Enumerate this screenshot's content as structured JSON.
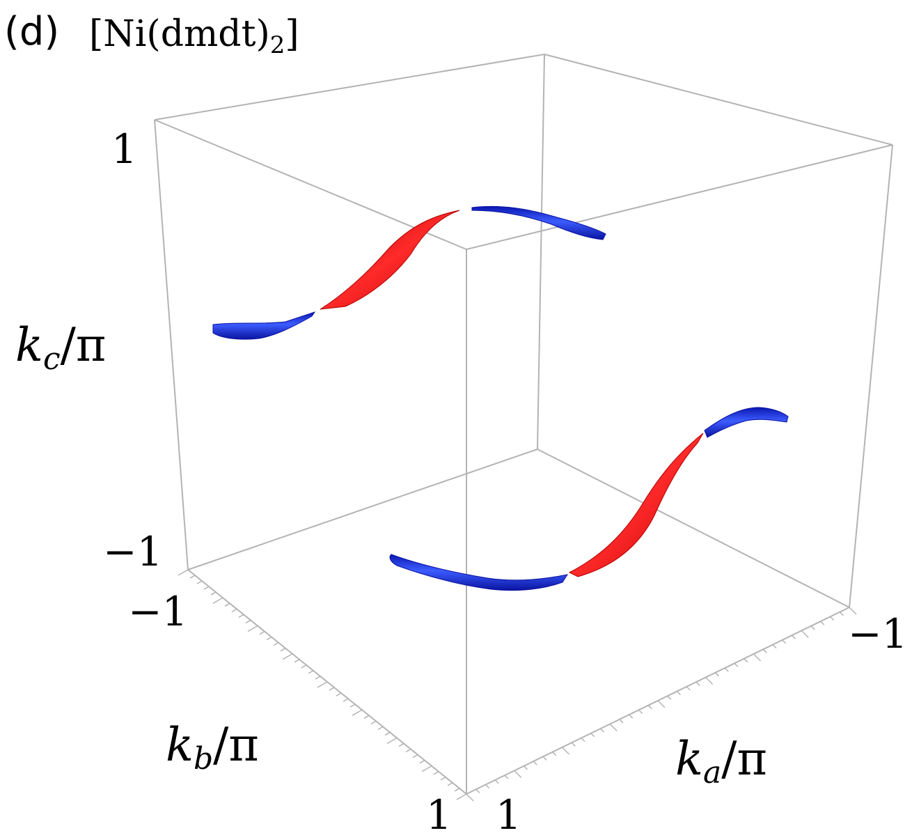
{
  "panel": {
    "letter": "(d)",
    "compound_open": "[Ni(dmdt)",
    "compound_sub": "2",
    "compound_close": "]"
  },
  "chart_data": {
    "type": "surface3d",
    "title": "[Ni(dmdt)2]",
    "axes": {
      "kc": {
        "var": "k",
        "sub": "c",
        "denom": "/π",
        "range": [
          -1,
          1
        ],
        "tick_labels": [
          "1",
          "−1"
        ]
      },
      "kb": {
        "var": "k",
        "sub": "b",
        "denom": "/π",
        "range": [
          -1,
          1
        ],
        "tick_labels": [
          "−1",
          "1"
        ]
      },
      "ka": {
        "var": "k",
        "sub": "a",
        "denom": "/π",
        "range": [
          -1,
          1
        ],
        "tick_labels": [
          "−1",
          "1"
        ]
      }
    },
    "box": true,
    "colors": {
      "blue": "#1a2fe0",
      "red": "#e01010",
      "frame": "#b0b0b0"
    },
    "series": [
      {
        "color": "blue",
        "segment": "upper-left"
      },
      {
        "color": "red",
        "segment": "upper-middle"
      },
      {
        "color": "blue",
        "segment": "upper-right"
      },
      {
        "color": "blue",
        "segment": "lower-left"
      },
      {
        "color": "red",
        "segment": "lower-middle"
      },
      {
        "color": "blue",
        "segment": "lower-right"
      }
    ]
  }
}
